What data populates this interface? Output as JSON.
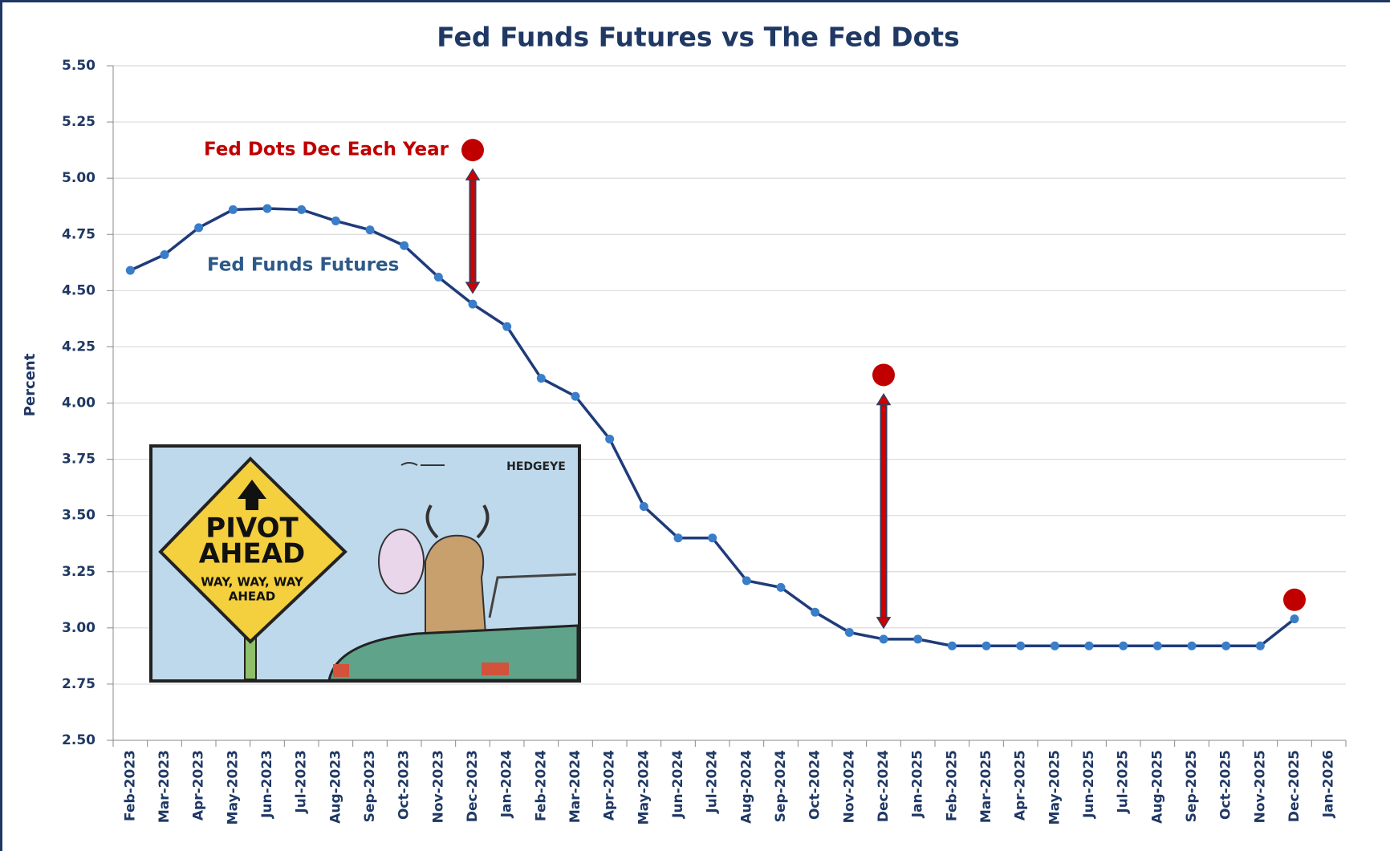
{
  "chart_data": {
    "type": "line",
    "title": "Fed Funds Futures vs The Fed Dots",
    "y_label": "Percent",
    "categories": [
      "Feb-2023",
      "Mar-2023",
      "Apr-2023",
      "May-2023",
      "Jun-2023",
      "Jul-2023",
      "Aug-2023",
      "Sep-2023",
      "Oct-2023",
      "Nov-2023",
      "Dec-2023",
      "Jan-2024",
      "Feb-2024",
      "Mar-2024",
      "Apr-2024",
      "May-2024",
      "Jun-2024",
      "Jul-2024",
      "Aug-2024",
      "Sep-2024",
      "Oct-2024",
      "Nov-2024",
      "Dec-2024",
      "Jan-2025",
      "Feb-2025",
      "Mar-2025",
      "Apr-2025",
      "May-2025",
      "Jun-2025",
      "Jul-2025",
      "Aug-2025",
      "Sep-2025",
      "Oct-2025",
      "Nov-2025",
      "Dec-2025",
      "Jan-2026"
    ],
    "series": [
      {
        "name": "Fed Funds Futures",
        "color": "#1f3b7a",
        "marker_color": "#3a7dc9",
        "values": [
          4.59,
          4.66,
          4.78,
          4.86,
          4.865,
          4.86,
          4.81,
          4.77,
          4.7,
          4.56,
          4.44,
          4.34,
          4.11,
          4.03,
          3.84,
          3.54,
          3.4,
          3.4,
          3.21,
          3.18,
          3.07,
          2.98,
          2.95,
          2.95,
          2.92,
          2.92,
          2.92,
          2.92,
          2.92,
          2.92,
          2.92,
          2.92,
          2.92,
          2.92,
          3.04,
          null
        ]
      },
      {
        "name": "Fed Dots Dec Each Year",
        "color": "#c00000",
        "values": [
          null,
          null,
          null,
          null,
          null,
          null,
          null,
          null,
          null,
          null,
          5.125,
          null,
          null,
          null,
          null,
          null,
          null,
          null,
          null,
          null,
          null,
          null,
          4.125,
          null,
          null,
          null,
          null,
          null,
          null,
          null,
          null,
          null,
          null,
          null,
          3.125,
          null
        ]
      }
    ],
    "ylim": [
      2.5,
      5.5
    ],
    "yticks": [
      {
        "value": 2.5,
        "label": "2.50"
      },
      2.75,
      {
        "value": 3,
        "label": "3.00"
      },
      3.25,
      {
        "value": 3.5,
        "label": "3.50"
      },
      3.75,
      {
        "value": 4,
        "label": "4.00"
      },
      4.25,
      {
        "value": 4.5,
        "label": "4.50"
      },
      4.75,
      {
        "value": 5,
        "label": "5.00"
      },
      5.25,
      {
        "value": 5.5,
        "label": "5.50"
      }
    ],
    "grid": true,
    "inset": {
      "sign_lines": [
        "PIVOT",
        "AHEAD",
        "WAY, WAY, WAY",
        "AHEAD"
      ],
      "brand": "HEDGEYE"
    }
  }
}
